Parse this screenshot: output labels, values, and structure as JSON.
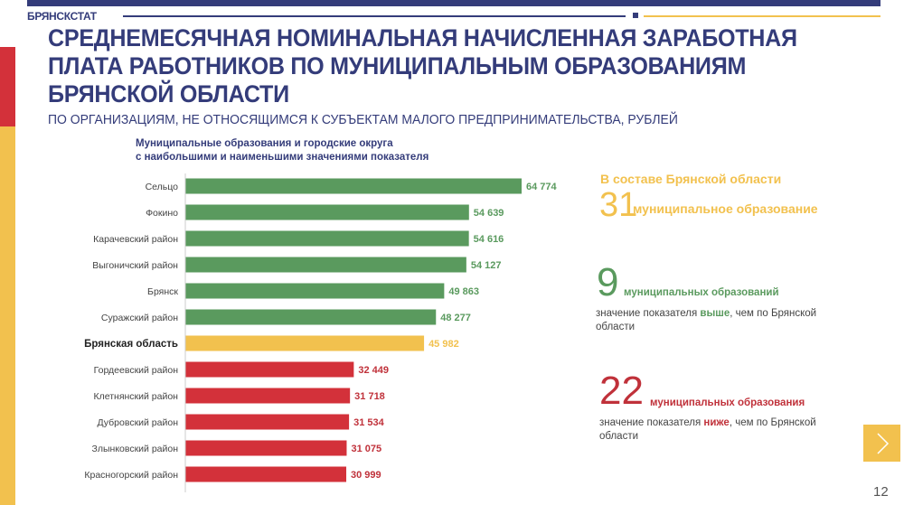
{
  "header": {
    "brand": "БРЯНСКСТАТ",
    "title": "СРЕДНЕМЕСЯЧНАЯ НОМИНАЛЬНАЯ НАЧИСЛЕННАЯ ЗАРАБОТНАЯ ПЛАТА РАБОТНИКОВ ПО МУНИЦИПАЛЬНЫМ ОБРАЗОВАНИЯМ БРЯНСКОЙ ОБЛАСТИ",
    "subtitle": "ПО ОРГАНИЗАЦИЯМ, НЕ ОТНОСЯЩИМСЯ К СУБЪЕКТАМ МАЛОГО ПРЕДПРИНИМАТЕЛЬСТВА, РУБЛЕЙ"
  },
  "colors": {
    "navy": "#343c7a",
    "green": "#5a9a5e",
    "yellow": "#f2c14e",
    "red": "#d3313a"
  },
  "chart_data": {
    "type": "bar",
    "orientation": "horizontal",
    "title": "Муниципальные образования и городские округа с наибольшими и наименьшими значениями показателя",
    "title_lines": [
      "Муниципальные образования и городские округа",
      "с наибольшими и наименьшими значениями показателя"
    ],
    "categories": [
      "Сельцо",
      "Фокино",
      "Карачевский район",
      "Выгоничский район",
      "Брянск",
      "Суражский район",
      "Брянская область",
      "Гордеевский район",
      "Клетнянский район",
      "Дубровский район",
      "Злынковский район",
      "Красногорский район"
    ],
    "values": [
      64774,
      54639,
      54616,
      54127,
      49863,
      48277,
      45982,
      32449,
      31718,
      31534,
      31075,
      30999
    ],
    "labels": [
      "64 774",
      "54 639",
      "54 616",
      "54 127",
      "49 863",
      "48 277",
      "45 982",
      "32 449",
      "31 718",
      "31 534",
      "31 075",
      "30 999"
    ],
    "groups": [
      "above",
      "above",
      "above",
      "above",
      "above",
      "above",
      "region",
      "below",
      "below",
      "below",
      "below",
      "below"
    ],
    "xlim": [
      0,
      70000
    ],
    "grid": false
  },
  "summary": {
    "total": {
      "heading": "В составе Брянской области",
      "number": "31",
      "label": "муниципальное образование"
    },
    "above": {
      "number": "9",
      "label": "муниципальных образований",
      "desc_pre": "значение показателя ",
      "desc_em": "выше",
      "desc_post": ", чем по Брянской области"
    },
    "below": {
      "number": "22",
      "label": "муниципальных образования",
      "desc_pre": "значение показателя ",
      "desc_em": "ниже",
      "desc_post": ", чем по Брянской области"
    }
  },
  "footer": {
    "page": "12",
    "next_icon": "chevron-right-icon"
  }
}
